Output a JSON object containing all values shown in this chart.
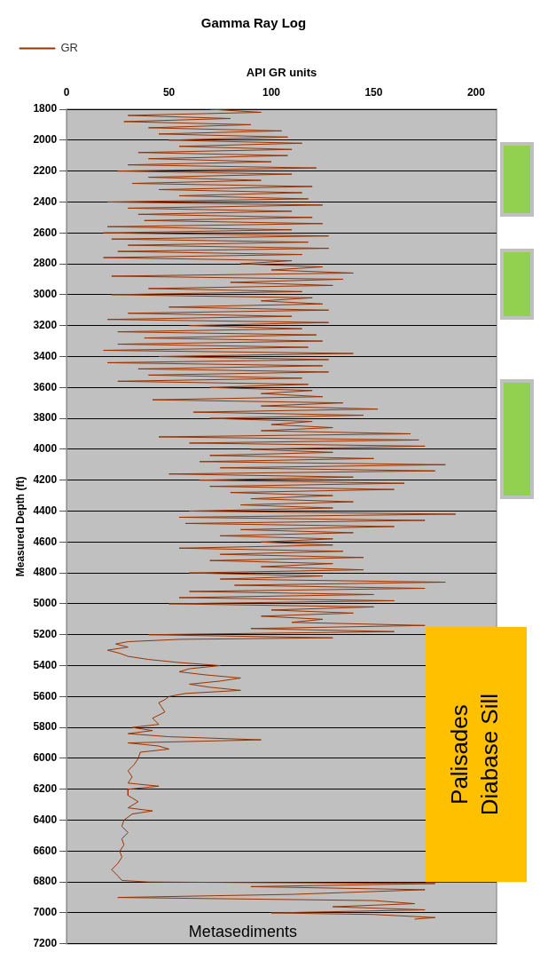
{
  "chart_data": {
    "type": "line",
    "title": "Gamma Ray Log",
    "xlabel": "API GR units",
    "ylabel": "Measured Depth (ft)",
    "xlim": [
      0,
      210
    ],
    "xticks": [
      0,
      50,
      100,
      150,
      200
    ],
    "ylim": [
      7200,
      1800
    ],
    "yticks": [
      1800,
      2000,
      2200,
      2400,
      2600,
      2800,
      3000,
      3200,
      3400,
      3600,
      3800,
      4000,
      4200,
      4400,
      4600,
      4800,
      5000,
      5200,
      5400,
      5600,
      5800,
      6000,
      6200,
      6400,
      6600,
      6800,
      7000,
      7200
    ],
    "grid": "y",
    "legend": "top left",
    "marker": "none",
    "series": [
      {
        "name": "GR",
        "color": "#993300",
        "x": [
          70,
          95,
          30,
          80,
          28,
          90,
          40,
          105,
          45,
          108,
          50,
          115,
          55,
          110,
          35,
          108,
          40,
          100,
          30,
          122,
          25,
          110,
          40,
          95,
          32,
          120,
          45,
          115,
          55,
          118,
          20,
          125,
          30,
          110,
          35,
          120,
          38,
          125,
          20,
          110,
          18,
          128,
          22,
          118,
          30,
          128,
          25,
          115,
          18,
          110,
          85,
          125,
          100,
          140,
          22,
          135,
          80,
          130,
          40,
          115,
          22,
          120,
          95,
          125,
          50,
          128,
          30,
          110,
          20,
          128,
          60,
          115,
          25,
          122,
          38,
          125,
          25,
          118,
          18,
          140,
          45,
          128,
          20,
          125,
          35,
          128,
          40,
          115,
          25,
          118,
          70,
          120,
          95,
          125,
          42,
          135,
          95,
          152,
          62,
          145,
          70,
          120,
          100,
          130,
          95,
          168,
          45,
          172,
          60,
          175,
          90,
          130,
          70,
          150,
          65,
          185,
          75,
          180,
          50,
          140,
          65,
          165,
          70,
          160,
          80,
          130,
          90,
          140,
          85,
          130,
          60,
          190,
          55,
          175,
          58,
          160,
          85,
          140,
          75,
          130,
          95,
          130,
          55,
          135,
          75,
          145,
          70,
          130,
          95,
          145,
          60,
          125,
          75,
          185,
          82,
          175,
          60,
          150,
          55,
          160,
          50,
          150,
          100,
          140,
          95,
          125,
          110,
          175,
          90,
          160,
          40,
          130,
          55,
          30,
          24,
          30,
          20,
          26,
          30,
          40,
          55,
          75,
          60,
          55,
          68,
          85,
          75,
          60,
          70,
          85,
          58,
          50,
          48,
          45,
          46,
          48,
          42,
          45,
          32,
          42,
          30,
          50,
          95,
          30,
          45,
          50,
          36,
          35,
          33,
          30,
          32,
          30,
          45,
          30,
          30,
          35,
          30,
          42,
          32,
          28,
          27,
          30,
          27,
          28,
          26,
          27,
          25,
          22,
          25,
          27,
          40,
          180,
          90,
          175,
          110,
          25,
          150,
          170,
          130,
          175,
          100,
          150,
          180,
          170
        ],
        "values": [
          1800,
          1820,
          1840,
          1860,
          1880,
          1900,
          1920,
          1940,
          1960,
          1980,
          2000,
          2020,
          2040,
          2060,
          2080,
          2100,
          2120,
          2140,
          2160,
          2180,
          2200,
          2220,
          2240,
          2260,
          2280,
          2300,
          2320,
          2340,
          2360,
          2380,
          2400,
          2420,
          2440,
          2460,
          2480,
          2500,
          2520,
          2540,
          2560,
          2580,
          2600,
          2620,
          2640,
          2660,
          2680,
          2700,
          2720,
          2740,
          2760,
          2780,
          2800,
          2820,
          2840,
          2860,
          2880,
          2900,
          2920,
          2940,
          2960,
          2980,
          3000,
          3020,
          3040,
          3060,
          3080,
          3100,
          3120,
          3140,
          3160,
          3180,
          3200,
          3220,
          3240,
          3260,
          3280,
          3300,
          3320,
          3340,
          3360,
          3380,
          3400,
          3420,
          3440,
          3460,
          3480,
          3500,
          3520,
          3540,
          3560,
          3580,
          3600,
          3620,
          3640,
          3660,
          3680,
          3700,
          3720,
          3740,
          3760,
          3780,
          3800,
          3820,
          3840,
          3860,
          3880,
          3900,
          3920,
          3940,
          3960,
          3980,
          4000,
          4020,
          4040,
          4060,
          4080,
          4100,
          4120,
          4140,
          4160,
          4180,
          4200,
          4220,
          4240,
          4260,
          4280,
          4300,
          4320,
          4340,
          4360,
          4380,
          4400,
          4420,
          4440,
          4460,
          4480,
          4500,
          4520,
          4540,
          4560,
          4580,
          4600,
          4620,
          4640,
          4660,
          4680,
          4700,
          4720,
          4740,
          4760,
          4780,
          4800,
          4820,
          4840,
          4860,
          4880,
          4900,
          4920,
          4940,
          4960,
          4980,
          5000,
          5020,
          5040,
          5060,
          5080,
          5100,
          5120,
          5140,
          5160,
          5180,
          5200,
          5220,
          5230,
          5245,
          5260,
          5280,
          5300,
          5320,
          5340,
          5360,
          5380,
          5400,
          5420,
          5440,
          5460,
          5480,
          5500,
          5520,
          5540,
          5560,
          5580,
          5600,
          5620,
          5640,
          5660,
          5700,
          5740,
          5780,
          5800,
          5820,
          5840,
          5860,
          5880,
          5900,
          5920,
          5940,
          5960,
          6000,
          6040,
          6080,
          6120,
          6160,
          6180,
          6200,
          6240,
          6280,
          6320,
          6340,
          6360,
          6400,
          6440,
          6480,
          6520,
          6560,
          6600,
          6640,
          6680,
          6720,
          6760,
          6790,
          6800,
          6810,
          6830,
          6850,
          6880,
          6900,
          6920,
          6940,
          6960,
          6980,
          7000,
          7010,
          7030,
          7040
        ]
      }
    ],
    "bands": [
      {
        "axis": "y",
        "from": 5150,
        "to": 6800,
        "color": "#ffc000",
        "label": "Palisades Diabase Sill"
      }
    ],
    "annotations": [
      "Metasediments"
    ]
  }
}
